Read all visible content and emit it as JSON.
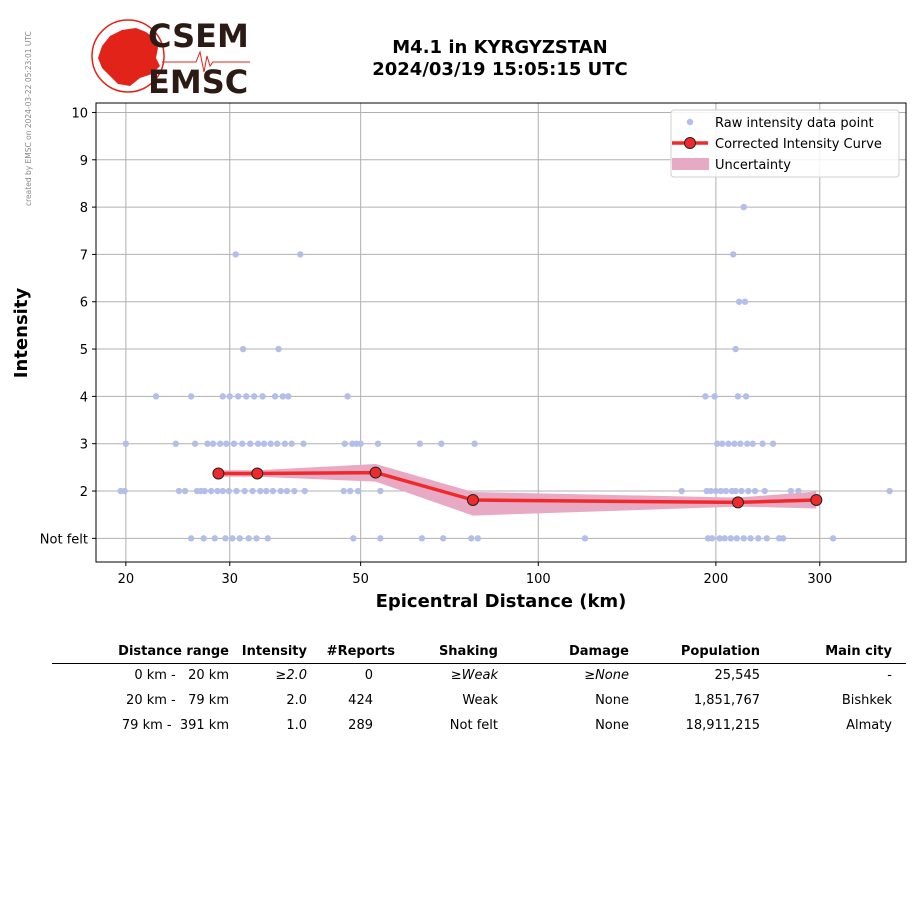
{
  "side_note": "created by EMSC on 2024-03-22 05:23:01 UTC",
  "logo": {
    "line1": "CSEM",
    "line2": "EMSC",
    "color": "#e2231a"
  },
  "title": {
    "line1": "M4.1 in KYRGYZSTAN",
    "line2": "2024/03/19 15:05:15 UTC"
  },
  "chart_data": {
    "type": "scatter",
    "xlabel": "Epicentral Distance (km)",
    "ylabel": "Intensity",
    "xscale": "log",
    "xlim": [
      17.8,
      420
    ],
    "ylim": [
      0.5,
      10.2
    ],
    "x_ticks": [
      20,
      30,
      50,
      100,
      200,
      300
    ],
    "y_ticks": [
      1,
      2,
      3,
      4,
      5,
      6,
      7,
      8,
      9,
      10
    ],
    "y_tick_labels": [
      "Not felt",
      "2",
      "3",
      "4",
      "5",
      "6",
      "7",
      "8",
      "9",
      "10"
    ],
    "grid": true,
    "legend_position": "top-right",
    "legend": [
      "Raw intensity data point",
      "Corrected Intensity Curve",
      "Uncertainty"
    ],
    "colors": {
      "points": "#b4bfe9",
      "curve": "#f02a2a",
      "band": "#e8a9c4"
    },
    "raw_points": [
      [
        19.6,
        2
      ],
      [
        19.9,
        2
      ],
      [
        20,
        3
      ],
      [
        22.5,
        4
      ],
      [
        24.3,
        3
      ],
      [
        24.6,
        2
      ],
      [
        25.2,
        2
      ],
      [
        25.8,
        1
      ],
      [
        25.8,
        4
      ],
      [
        26.2,
        3
      ],
      [
        26.4,
        2
      ],
      [
        26.8,
        2
      ],
      [
        27.1,
        1
      ],
      [
        27.2,
        2
      ],
      [
        27.5,
        3
      ],
      [
        27.9,
        2
      ],
      [
        28.1,
        3
      ],
      [
        28.3,
        1
      ],
      [
        28.6,
        2
      ],
      [
        28.9,
        3
      ],
      [
        29.2,
        2
      ],
      [
        29.2,
        4
      ],
      [
        29.5,
        1
      ],
      [
        29.6,
        3
      ],
      [
        29.9,
        2
      ],
      [
        30,
        4
      ],
      [
        30.3,
        1
      ],
      [
        30.5,
        3
      ],
      [
        30.7,
        7
      ],
      [
        30.8,
        2
      ],
      [
        31,
        4
      ],
      [
        31.2,
        1
      ],
      [
        31.5,
        3
      ],
      [
        31.6,
        5
      ],
      [
        31.8,
        2
      ],
      [
        32,
        4
      ],
      [
        32.3,
        1
      ],
      [
        32.5,
        3
      ],
      [
        32.8,
        2
      ],
      [
        33,
        4
      ],
      [
        33.3,
        1
      ],
      [
        33.5,
        3
      ],
      [
        33.8,
        2
      ],
      [
        34.1,
        4
      ],
      [
        34.3,
        3
      ],
      [
        34.6,
        2
      ],
      [
        34.8,
        1
      ],
      [
        35.2,
        3
      ],
      [
        35.5,
        2
      ],
      [
        35.8,
        4
      ],
      [
        36.1,
        3
      ],
      [
        36.3,
        5
      ],
      [
        36.6,
        2
      ],
      [
        36.9,
        4
      ],
      [
        37.2,
        3
      ],
      [
        37.5,
        2
      ],
      [
        37.7,
        4
      ],
      [
        38.2,
        3
      ],
      [
        38.6,
        2
      ],
      [
        39.5,
        7
      ],
      [
        40,
        3
      ],
      [
        40.2,
        2
      ],
      [
        46.8,
        2
      ],
      [
        47,
        3
      ],
      [
        47.5,
        4
      ],
      [
        48,
        2
      ],
      [
        48.4,
        3
      ],
      [
        48.6,
        1
      ],
      [
        49.2,
        3
      ],
      [
        49.5,
        2
      ],
      [
        50,
        3
      ],
      [
        53.5,
        3
      ],
      [
        54,
        2
      ],
      [
        54,
        1
      ],
      [
        63,
        3
      ],
      [
        63.5,
        1
      ],
      [
        68.5,
        3
      ],
      [
        69,
        1
      ],
      [
        77,
        1
      ],
      [
        78,
        3
      ],
      [
        79,
        1
      ],
      [
        120,
        1
      ],
      [
        175,
        2
      ],
      [
        192,
        4
      ],
      [
        193,
        2
      ],
      [
        194,
        1
      ],
      [
        196,
        2
      ],
      [
        197,
        1
      ],
      [
        199,
        4
      ],
      [
        200,
        2
      ],
      [
        201,
        3
      ],
      [
        203,
        1
      ],
      [
        204,
        2
      ],
      [
        205,
        3
      ],
      [
        207,
        1
      ],
      [
        208,
        2
      ],
      [
        210,
        3
      ],
      [
        212,
        1
      ],
      [
        213,
        2
      ],
      [
        214,
        7
      ],
      [
        215,
        3
      ],
      [
        216,
        5
      ],
      [
        216,
        2
      ],
      [
        217,
        1
      ],
      [
        218,
        4
      ],
      [
        219,
        6
      ],
      [
        220,
        3
      ],
      [
        221,
        2
      ],
      [
        223,
        1
      ],
      [
        223,
        8
      ],
      [
        224,
        6
      ],
      [
        225,
        4
      ],
      [
        226,
        3
      ],
      [
        227,
        2
      ],
      [
        229,
        1
      ],
      [
        231,
        3
      ],
      [
        233,
        2
      ],
      [
        236,
        1
      ],
      [
        240,
        3
      ],
      [
        242,
        2
      ],
      [
        244,
        1
      ],
      [
        250,
        3
      ],
      [
        256,
        1
      ],
      [
        260,
        1
      ],
      [
        268,
        2
      ],
      [
        276,
        2
      ],
      [
        316,
        1
      ],
      [
        394,
        2
      ]
    ],
    "curve": {
      "x": [
        28.7,
        33.4,
        53.0,
        77.5,
        218,
        296
      ],
      "y": [
        2.37,
        2.37,
        2.39,
        1.81,
        1.76,
        1.81
      ]
    },
    "uncertainty": {
      "x": [
        28.7,
        33.4,
        53.0,
        77.5,
        218,
        296
      ],
      "upper": [
        2.44,
        2.44,
        2.57,
        1.98,
        1.86,
        1.99
      ],
      "lower": [
        2.3,
        2.3,
        2.2,
        1.48,
        1.67,
        1.63
      ]
    }
  },
  "table": {
    "headers": [
      "Distance range",
      "Intensity",
      "#Reports",
      "Shaking",
      "Damage",
      "Population",
      "Main city"
    ],
    "rows": [
      {
        "range": "0 km -   20 km",
        "intensity": "≥2.0",
        "reports": "0",
        "shaking": "≥Weak",
        "damage": "≥None",
        "population": "25,545",
        "city": "-"
      },
      {
        "range": "20 km -   79 km",
        "intensity": "2.0",
        "reports": "424",
        "shaking": "Weak",
        "damage": "None",
        "population": "1,851,767",
        "city": "Bishkek"
      },
      {
        "range": "79 km -  391 km",
        "intensity": "1.0",
        "reports": "289",
        "shaking": "Not felt",
        "damage": "None",
        "population": "18,911,215",
        "city": "Almaty"
      }
    ]
  }
}
